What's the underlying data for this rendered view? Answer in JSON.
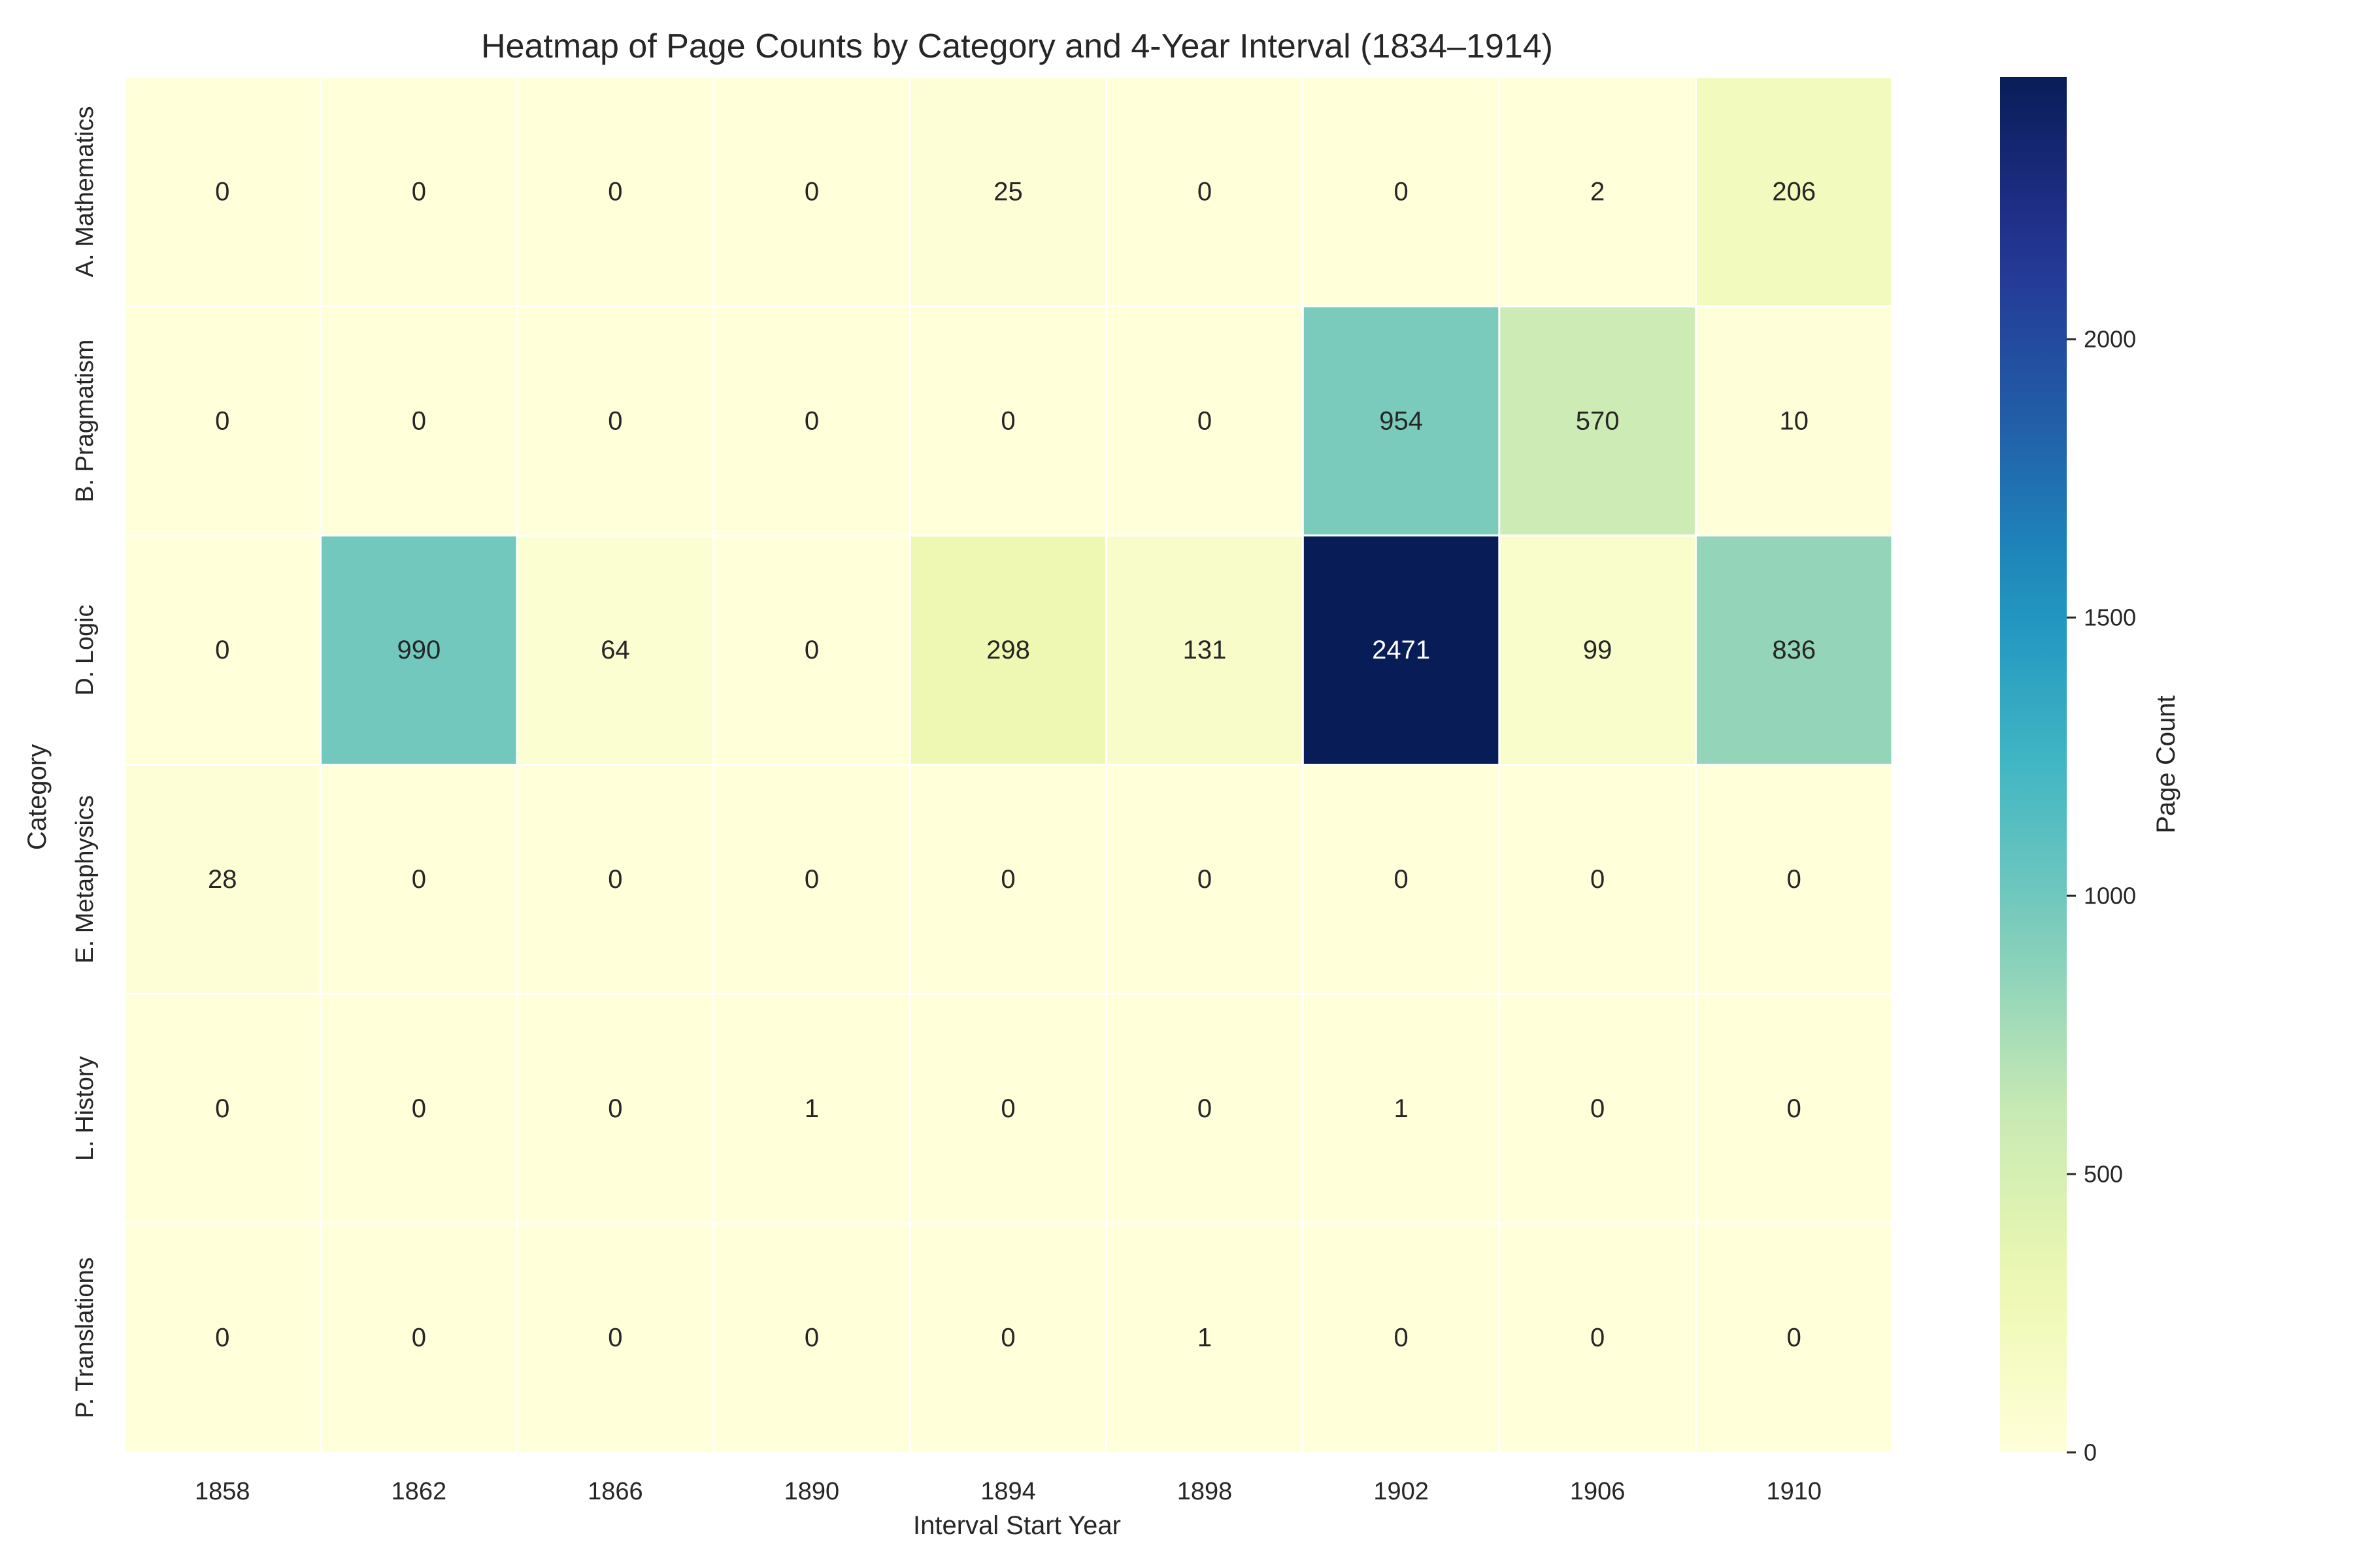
{
  "chart_data": {
    "type": "heatmap",
    "title": "Heatmap of Page Counts by Category and 4-Year Interval (1834–1914)",
    "xlabel": "Interval Start Year",
    "ylabel": "Category",
    "x_categories": [
      "1858",
      "1862",
      "1866",
      "1890",
      "1894",
      "1898",
      "1902",
      "1906",
      "1910"
    ],
    "y_categories": [
      "A. Mathematics",
      "B. Pragmatism",
      "D. Logic",
      "E. Metaphysics",
      "L. History",
      "P. Translations"
    ],
    "values": [
      [
        0,
        0,
        0,
        0,
        25,
        0,
        0,
        2,
        206
      ],
      [
        0,
        0,
        0,
        0,
        0,
        0,
        954,
        570,
        10
      ],
      [
        0,
        990,
        64,
        0,
        298,
        131,
        2471,
        99,
        836
      ],
      [
        28,
        0,
        0,
        0,
        0,
        0,
        0,
        0,
        0
      ],
      [
        0,
        0,
        0,
        1,
        0,
        0,
        1,
        0,
        0
      ],
      [
        0,
        0,
        0,
        0,
        0,
        1,
        0,
        0,
        0
      ]
    ],
    "colorbar": {
      "label": "Page Count",
      "range": [
        0,
        2471
      ],
      "ticks": [
        0,
        500,
        1000,
        1500,
        2000
      ],
      "colormap": "YlGnBu"
    },
    "annotations": "cell values shown",
    "grid": false
  }
}
